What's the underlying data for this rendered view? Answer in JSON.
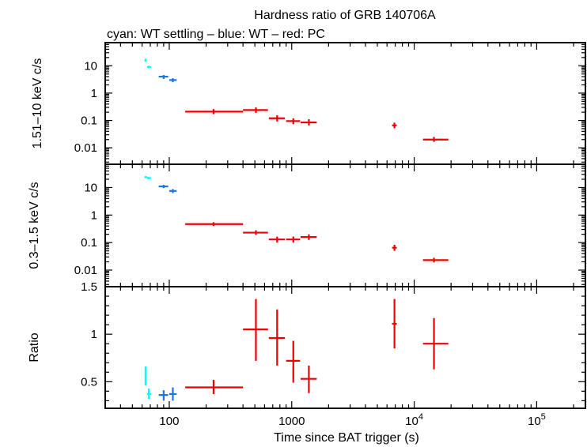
{
  "chart_data": {
    "type": "scatter",
    "title": "Hardness ratio of GRB 140706A",
    "subtitle": "cyan: WT settling – blue: WT – red: PC",
    "xlabel": "Time since BAT trigger (s)",
    "xscale": "log",
    "xlim": [
      30,
      250000
    ],
    "x_tick_labels": [
      {
        "value": 100,
        "label": "100"
      },
      {
        "value": 1000,
        "label": "1000"
      },
      {
        "value": 10000,
        "base": "10",
        "exp": "4"
      },
      {
        "value": 100000,
        "base": "10",
        "exp": "5"
      }
    ],
    "colors": {
      "wt_settling": "#00ffff",
      "wt": "#1a75e6",
      "pc": "#ee0000"
    },
    "panels": [
      {
        "id": "hard",
        "ylabel": "1.51–10 keV c/s",
        "yscale": "log",
        "ylim": [
          0.0025,
          70
        ],
        "y_tick_labels": [
          {
            "value": 10,
            "label": "10"
          },
          {
            "value": 1,
            "label": "1"
          },
          {
            "value": 0.1,
            "label": "0.1"
          },
          {
            "value": 0.01,
            "label": "0.01"
          }
        ],
        "series": [
          {
            "name": "WT settling",
            "color_key": "wt_settling",
            "points": [
              {
                "x": 64,
                "xlo": 63,
                "xhi": 65,
                "y": 16,
                "ylo": 14,
                "yhi": 18
              },
              {
                "x": 68,
                "xlo": 66,
                "xhi": 71,
                "y": 9,
                "ylo": 8,
                "yhi": 10
              }
            ]
          },
          {
            "name": "WT",
            "color_key": "wt",
            "points": [
              {
                "x": 90,
                "xlo": 82,
                "xhi": 98,
                "y": 4,
                "ylo": 3.3,
                "yhi": 4.6
              },
              {
                "x": 107,
                "xlo": 100,
                "xhi": 115,
                "y": 3,
                "ylo": 2.5,
                "yhi": 3.5
              }
            ]
          },
          {
            "name": "PC",
            "color_key": "pc",
            "points": [
              {
                "x": 230,
                "xlo": 135,
                "xhi": 400,
                "y": 0.21,
                "ylo": 0.17,
                "yhi": 0.26
              },
              {
                "x": 510,
                "xlo": 400,
                "xhi": 640,
                "y": 0.24,
                "ylo": 0.19,
                "yhi": 0.3
              },
              {
                "x": 760,
                "xlo": 650,
                "xhi": 880,
                "y": 0.12,
                "ylo": 0.092,
                "yhi": 0.155
              },
              {
                "x": 1030,
                "xlo": 900,
                "xhi": 1170,
                "y": 0.095,
                "ylo": 0.073,
                "yhi": 0.12
              },
              {
                "x": 1380,
                "xlo": 1180,
                "xhi": 1600,
                "y": 0.085,
                "ylo": 0.066,
                "yhi": 0.11
              },
              {
                "x": 6900,
                "xlo": 6600,
                "xhi": 7200,
                "y": 0.066,
                "ylo": 0.052,
                "yhi": 0.083
              },
              {
                "x": 14500,
                "xlo": 11800,
                "xhi": 19000,
                "y": 0.02,
                "ylo": 0.0165,
                "yhi": 0.025
              }
            ]
          }
        ]
      },
      {
        "id": "soft",
        "ylabel": "0.3–1.5 keV c/s",
        "yscale": "log",
        "ylim": [
          0.0025,
          70
        ],
        "y_tick_labels": [
          {
            "value": 10,
            "label": "10"
          },
          {
            "value": 1,
            "label": "1"
          },
          {
            "value": 0.1,
            "label": "0.1"
          },
          {
            "value": 0.01,
            "label": "0.01"
          }
        ],
        "series": [
          {
            "name": "WT settling",
            "color_key": "wt_settling",
            "points": [
              {
                "x": 64,
                "xlo": 63,
                "xhi": 66,
                "y": 24,
                "ylo": 22,
                "yhi": 26
              },
              {
                "x": 68,
                "xlo": 66,
                "xhi": 71,
                "y": 22,
                "ylo": 20,
                "yhi": 24
              }
            ]
          },
          {
            "name": "WT",
            "color_key": "wt",
            "points": [
              {
                "x": 90,
                "xlo": 82,
                "xhi": 98,
                "y": 11,
                "ylo": 9.5,
                "yhi": 12.5
              },
              {
                "x": 107,
                "xlo": 100,
                "xhi": 115,
                "y": 7.5,
                "ylo": 6.3,
                "yhi": 8.8
              }
            ]
          },
          {
            "name": "PC",
            "color_key": "pc",
            "points": [
              {
                "x": 230,
                "xlo": 135,
                "xhi": 400,
                "y": 0.47,
                "ylo": 0.4,
                "yhi": 0.55
              },
              {
                "x": 510,
                "xlo": 400,
                "xhi": 640,
                "y": 0.23,
                "ylo": 0.19,
                "yhi": 0.28
              },
              {
                "x": 760,
                "xlo": 650,
                "xhi": 880,
                "y": 0.13,
                "ylo": 0.1,
                "yhi": 0.165
              },
              {
                "x": 1030,
                "xlo": 900,
                "xhi": 1170,
                "y": 0.13,
                "ylo": 0.1,
                "yhi": 0.165
              },
              {
                "x": 1380,
                "xlo": 1180,
                "xhi": 1600,
                "y": 0.16,
                "ylo": 0.125,
                "yhi": 0.2
              },
              {
                "x": 6900,
                "xlo": 6600,
                "xhi": 7200,
                "y": 0.065,
                "ylo": 0.05,
                "yhi": 0.083
              },
              {
                "x": 14500,
                "xlo": 11800,
                "xhi": 19000,
                "y": 0.023,
                "ylo": 0.019,
                "yhi": 0.028
              }
            ]
          }
        ]
      },
      {
        "id": "ratio",
        "ylabel": "Ratio",
        "yscale": "linear",
        "ylim": [
          0.22,
          1.5
        ],
        "y_tick_labels": [
          {
            "value": 1.5,
            "label": "1.5"
          },
          {
            "value": 1,
            "label": "1"
          },
          {
            "value": 0.5,
            "label": "0.5"
          }
        ],
        "series": [
          {
            "name": "WT settling",
            "color_key": "wt_settling",
            "points": [
              {
                "x": 64,
                "xlo": 63,
                "xhi": 65,
                "y": 0.56,
                "ylo": 0.46,
                "yhi": 0.66
              },
              {
                "x": 68,
                "xlo": 66,
                "xhi": 71,
                "y": 0.37,
                "ylo": 0.32,
                "yhi": 0.43
              }
            ]
          },
          {
            "name": "WT",
            "color_key": "wt",
            "points": [
              {
                "x": 90,
                "xlo": 82,
                "xhi": 98,
                "y": 0.36,
                "ylo": 0.3,
                "yhi": 0.41
              },
              {
                "x": 107,
                "xlo": 100,
                "xhi": 115,
                "y": 0.37,
                "ylo": 0.3,
                "yhi": 0.44
              }
            ]
          },
          {
            "name": "PC",
            "color_key": "pc",
            "points": [
              {
                "x": 230,
                "xlo": 135,
                "xhi": 400,
                "y": 0.44,
                "ylo": 0.37,
                "yhi": 0.52
              },
              {
                "x": 510,
                "xlo": 400,
                "xhi": 640,
                "y": 1.05,
                "ylo": 0.72,
                "yhi": 1.37
              },
              {
                "x": 760,
                "xlo": 650,
                "xhi": 880,
                "y": 0.96,
                "ylo": 0.67,
                "yhi": 1.26
              },
              {
                "x": 1030,
                "xlo": 900,
                "xhi": 1170,
                "y": 0.72,
                "ylo": 0.49,
                "yhi": 0.93
              },
              {
                "x": 1380,
                "xlo": 1180,
                "xhi": 1600,
                "y": 0.53,
                "ylo": 0.38,
                "yhi": 0.67
              },
              {
                "x": 6900,
                "xlo": 6600,
                "xhi": 7200,
                "y": 1.11,
                "ylo": 0.85,
                "yhi": 1.37
              },
              {
                "x": 14500,
                "xlo": 11800,
                "xhi": 19000,
                "y": 0.9,
                "ylo": 0.63,
                "yhi": 1.17
              }
            ]
          }
        ]
      }
    ]
  }
}
